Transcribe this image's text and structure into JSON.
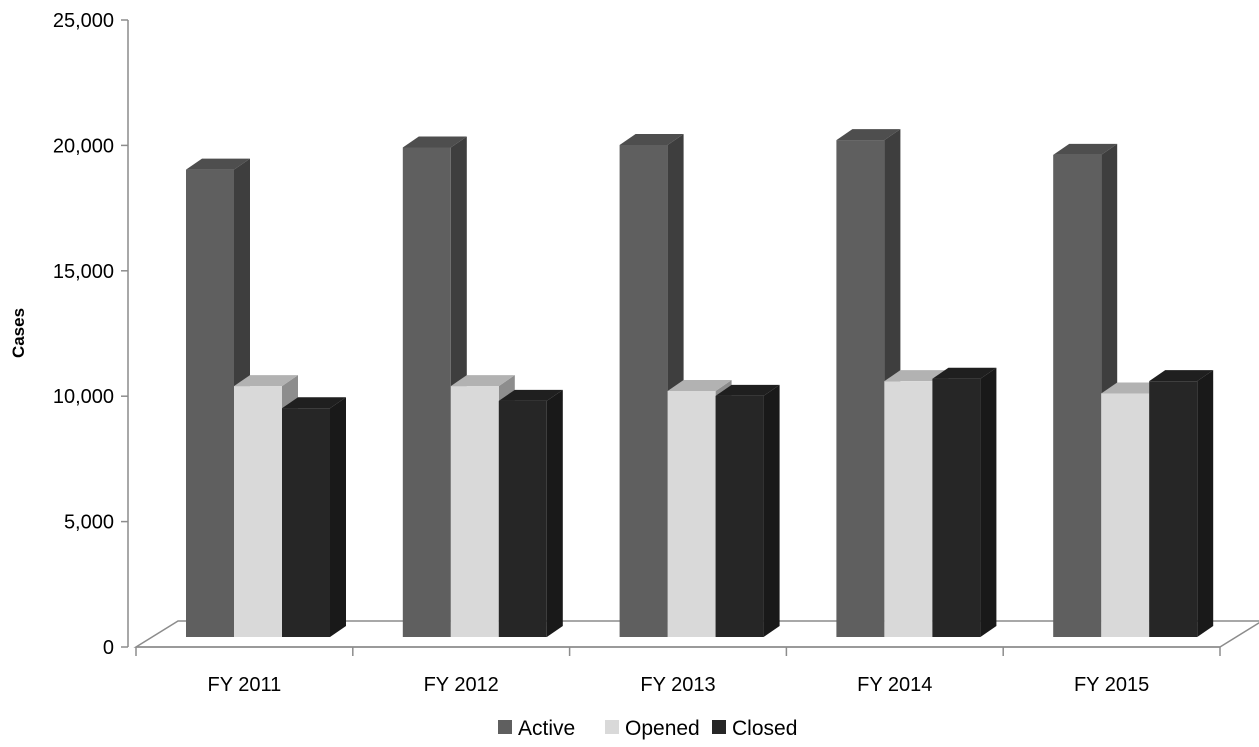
{
  "chart_data": {
    "type": "bar",
    "title": "",
    "xlabel": "",
    "ylabel": "Cases",
    "ylim": [
      0,
      25000
    ],
    "yticks": [
      0,
      5000,
      10000,
      15000,
      20000,
      25000
    ],
    "ytick_labels": [
      "0",
      "5,000",
      "10,000",
      "15,000",
      "20,000",
      "25,000"
    ],
    "categories": [
      "FY 2011",
      "FY 2012",
      "FY 2013",
      "FY 2014",
      "FY 2015"
    ],
    "series": [
      {
        "name": "Active",
        "color": "#5f5f5f",
        "values": [
          19000,
          19900,
          20000,
          20200,
          19600
        ]
      },
      {
        "name": "Opened",
        "color": "#d9d9d9",
        "values": [
          10200,
          10200,
          10000,
          10400,
          9900
        ]
      },
      {
        "name": "Closed",
        "color": "#262626",
        "values": [
          9300,
          9600,
          9800,
          10500,
          10400
        ]
      }
    ],
    "style": "3d-clustered-column",
    "grid": false,
    "legend_position": "bottom"
  }
}
